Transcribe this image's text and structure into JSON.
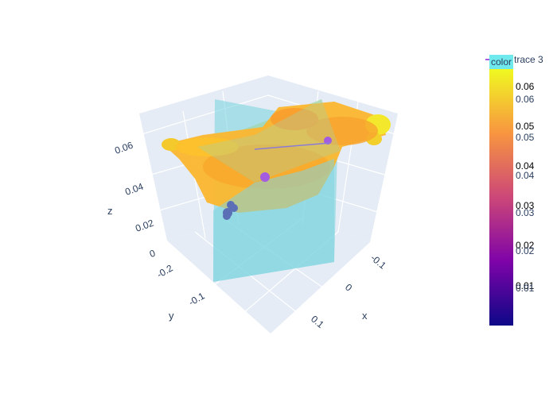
{
  "chart_data": {
    "type": "scatter3d",
    "axes": {
      "x": {
        "label": "x",
        "ticks": [
          "-0.1",
          "0",
          "0.1"
        ]
      },
      "y": {
        "label": "y",
        "ticks": [
          "-0.2",
          "-0.1"
        ]
      },
      "z": {
        "label": "z",
        "ticks": [
          "0",
          "0.02",
          "0.04",
          "0.06"
        ]
      }
    },
    "grid": true,
    "legend": {
      "placement": "top-right",
      "entries": [
        "trace 3"
      ]
    },
    "colorbar": {
      "title": "color",
      "tick_labels_a": [
        "0.06",
        "0.05",
        "0.04",
        "0.03",
        "0.02",
        "0.01"
      ],
      "tick_labels_b": [
        "0.06",
        "0.05",
        "0.04",
        "0.03",
        "0.02",
        "0.01"
      ]
    },
    "series": [
      {
        "kind": "surface-points",
        "description_color": "#f6b52c",
        "z_range": [
          0.04,
          0.065
        ]
      },
      {
        "kind": "vertical-planes",
        "color": "#7fd6e0"
      },
      {
        "kind": "points",
        "color": "#5b6fb6",
        "z_range": [
          0.015,
          0.025
        ]
      },
      {
        "kind": "points",
        "color": "#a35be0",
        "z_range": [
          0.045,
          0.055
        ]
      }
    ],
    "colors": {
      "background": "#e5ecf6",
      "grid": "#ffffff",
      "plane": "#7fd6e0",
      "colorscale": [
        "#0d0887",
        "#7e03a8",
        "#cc4778",
        "#f89540",
        "#f0f921"
      ]
    }
  }
}
